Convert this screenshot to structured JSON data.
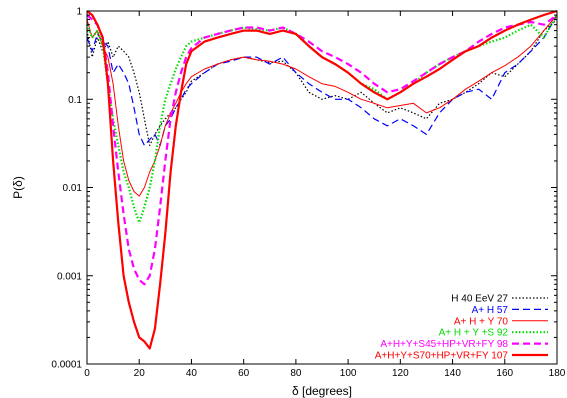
{
  "chart_data": {
    "type": "line",
    "title": "",
    "xlabel": "δ [degrees]",
    "ylabel": "P(δ)",
    "xlim": [
      0,
      180
    ],
    "ylim": [
      0.0001,
      1
    ],
    "yscale": "log",
    "grid": false,
    "legend_position": "bottom-right",
    "x_ticks": [
      0,
      20,
      40,
      60,
      80,
      100,
      120,
      140,
      160,
      180
    ],
    "x_tick_labels": [
      "0",
      "20",
      "40",
      "60",
      "80",
      "100",
      "120",
      "140",
      "160",
      "180"
    ],
    "y_ticks": [
      0.0001,
      0.001,
      0.01,
      0.1,
      1
    ],
    "y_tick_labels": [
      "0.0001",
      "0.001",
      "0.01",
      "0.1",
      "1"
    ],
    "series": [
      {
        "name": "H 40 EeV 27",
        "color": "#000000",
        "dash": "dotted",
        "width": 1.2,
        "x": [
          0,
          2,
          4,
          6,
          8,
          10,
          12,
          14,
          16,
          18,
          20,
          22,
          24,
          26,
          28,
          30,
          32,
          34,
          36,
          38,
          40,
          45,
          50,
          55,
          60,
          65,
          70,
          75,
          80,
          85,
          90,
          95,
          100,
          105,
          110,
          115,
          120,
          125,
          130,
          135,
          140,
          145,
          150,
          155,
          160,
          165,
          170,
          175,
          180
        ],
        "y": [
          0.6,
          0.3,
          0.5,
          0.35,
          0.45,
          0.3,
          0.4,
          0.35,
          0.3,
          0.2,
          0.12,
          0.06,
          0.03,
          0.04,
          0.05,
          0.06,
          0.07,
          0.08,
          0.1,
          0.12,
          0.16,
          0.2,
          0.25,
          0.28,
          0.3,
          0.28,
          0.26,
          0.27,
          0.2,
          0.12,
          0.1,
          0.11,
          0.1,
          0.12,
          0.09,
          0.07,
          0.08,
          0.07,
          0.06,
          0.09,
          0.1,
          0.12,
          0.15,
          0.2,
          0.18,
          0.25,
          0.35,
          0.6,
          0.8
        ]
      },
      {
        "name": "A+ H  57",
        "color": "#0000ff",
        "dash": "dashed",
        "width": 1.2,
        "x": [
          0,
          2,
          4,
          6,
          8,
          10,
          12,
          14,
          16,
          18,
          20,
          22,
          24,
          26,
          28,
          30,
          32,
          34,
          36,
          38,
          40,
          45,
          50,
          55,
          60,
          65,
          70,
          75,
          80,
          85,
          90,
          95,
          100,
          105,
          110,
          115,
          120,
          125,
          130,
          135,
          140,
          145,
          150,
          155,
          160,
          165,
          170,
          175,
          180
        ],
        "y": [
          0.5,
          0.35,
          0.55,
          0.45,
          0.4,
          0.2,
          0.25,
          0.2,
          0.15,
          0.08,
          0.04,
          0.03,
          0.035,
          0.04,
          0.03,
          0.05,
          0.06,
          0.08,
          0.1,
          0.13,
          0.15,
          0.2,
          0.25,
          0.27,
          0.3,
          0.3,
          0.25,
          0.3,
          0.2,
          0.15,
          0.12,
          0.1,
          0.1,
          0.08,
          0.06,
          0.05,
          0.06,
          0.05,
          0.04,
          0.07,
          0.1,
          0.12,
          0.13,
          0.1,
          0.2,
          0.25,
          0.35,
          0.5,
          0.9
        ]
      },
      {
        "name": "A+ H + Y 70",
        "color": "#ff0000",
        "dash": "solid",
        "width": 1.0,
        "x": [
          0,
          2,
          4,
          6,
          8,
          10,
          12,
          14,
          16,
          18,
          20,
          22,
          24,
          26,
          28,
          30,
          32,
          34,
          36,
          38,
          40,
          45,
          50,
          55,
          60,
          65,
          70,
          75,
          80,
          85,
          90,
          95,
          100,
          105,
          110,
          115,
          120,
          125,
          130,
          135,
          140,
          145,
          150,
          155,
          160,
          165,
          170,
          175,
          180
        ],
        "y": [
          0.8,
          0.5,
          0.6,
          0.4,
          0.3,
          0.15,
          0.05,
          0.02,
          0.012,
          0.009,
          0.008,
          0.01,
          0.015,
          0.02,
          0.03,
          0.05,
          0.07,
          0.09,
          0.12,
          0.15,
          0.18,
          0.22,
          0.25,
          0.28,
          0.3,
          0.28,
          0.27,
          0.25,
          0.22,
          0.18,
          0.15,
          0.14,
          0.12,
          0.1,
          0.09,
          0.08,
          0.085,
          0.09,
          0.07,
          0.08,
          0.1,
          0.13,
          0.16,
          0.2,
          0.24,
          0.3,
          0.4,
          0.6,
          0.9
        ]
      },
      {
        "name": "A+ H + Y +S 92",
        "color": "#00dd00",
        "dash": "dotted",
        "width": 2.2,
        "x": [
          0,
          2,
          4,
          6,
          8,
          10,
          12,
          14,
          16,
          18,
          20,
          22,
          24,
          26,
          28,
          30,
          32,
          34,
          36,
          38,
          40,
          45,
          50,
          55,
          60,
          65,
          70,
          75,
          80,
          85,
          90,
          95,
          100,
          105,
          110,
          115,
          120,
          125,
          130,
          135,
          140,
          145,
          150,
          155,
          160,
          165,
          170,
          175,
          180
        ],
        "y": [
          0.7,
          0.5,
          0.6,
          0.4,
          0.15,
          0.06,
          0.03,
          0.015,
          0.01,
          0.006,
          0.004,
          0.006,
          0.01,
          0.02,
          0.05,
          0.1,
          0.15,
          0.22,
          0.3,
          0.4,
          0.45,
          0.5,
          0.55,
          0.6,
          0.65,
          0.62,
          0.6,
          0.65,
          0.55,
          0.4,
          0.3,
          0.25,
          0.2,
          0.15,
          0.13,
          0.1,
          0.12,
          0.15,
          0.2,
          0.25,
          0.3,
          0.35,
          0.4,
          0.45,
          0.5,
          0.6,
          0.7,
          0.5,
          0.9
        ]
      },
      {
        "name": "A+H+Y+S45+HP+VR+FY 98",
        "color": "#ff00ff",
        "dash": "dashed",
        "width": 2.2,
        "x": [
          0,
          2,
          4,
          6,
          8,
          10,
          12,
          14,
          16,
          18,
          20,
          22,
          24,
          26,
          28,
          30,
          32,
          34,
          36,
          38,
          40,
          45,
          50,
          55,
          60,
          65,
          70,
          75,
          80,
          85,
          90,
          95,
          100,
          105,
          110,
          115,
          120,
          125,
          130,
          135,
          140,
          145,
          150,
          155,
          160,
          165,
          170,
          175,
          180
        ],
        "y": [
          0.9,
          0.8,
          0.7,
          0.5,
          0.2,
          0.05,
          0.015,
          0.005,
          0.002,
          0.0012,
          0.0009,
          0.0008,
          0.001,
          0.002,
          0.006,
          0.02,
          0.06,
          0.12,
          0.2,
          0.3,
          0.38,
          0.5,
          0.55,
          0.6,
          0.65,
          0.65,
          0.6,
          0.65,
          0.55,
          0.45,
          0.35,
          0.3,
          0.25,
          0.2,
          0.15,
          0.12,
          0.13,
          0.16,
          0.2,
          0.25,
          0.3,
          0.35,
          0.45,
          0.55,
          0.65,
          0.7,
          0.75,
          0.7,
          0.9
        ]
      },
      {
        "name": "A+H+Y+S70+HP+VR+FY 107",
        "color": "#ff0000",
        "dash": "solid",
        "width": 2.2,
        "x": [
          0,
          2,
          4,
          6,
          8,
          10,
          12,
          14,
          16,
          18,
          20,
          22,
          24,
          26,
          28,
          30,
          32,
          34,
          36,
          38,
          40,
          45,
          50,
          55,
          60,
          65,
          70,
          75,
          80,
          85,
          90,
          95,
          100,
          105,
          110,
          115,
          120,
          125,
          130,
          135,
          140,
          145,
          150,
          155,
          160,
          165,
          170,
          175,
          180
        ],
        "y": [
          1.0,
          0.9,
          0.7,
          0.5,
          0.15,
          0.02,
          0.004,
          0.001,
          0.0005,
          0.0003,
          0.0002,
          0.00018,
          0.00015,
          0.00025,
          0.0008,
          0.003,
          0.015,
          0.05,
          0.12,
          0.25,
          0.35,
          0.45,
          0.5,
          0.55,
          0.6,
          0.6,
          0.55,
          0.6,
          0.55,
          0.4,
          0.3,
          0.25,
          0.2,
          0.15,
          0.12,
          0.1,
          0.12,
          0.15,
          0.18,
          0.22,
          0.28,
          0.35,
          0.4,
          0.5,
          0.6,
          0.7,
          0.8,
          0.9,
          1.0
        ]
      }
    ]
  }
}
